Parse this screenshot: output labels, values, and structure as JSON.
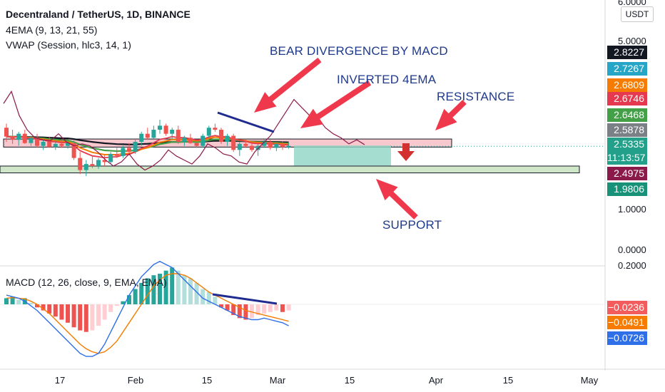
{
  "header": {
    "title": "Decentraland / TetherUS, 1D, BINANCE",
    "ema": "4EMA (9, 13, 21, 55)",
    "vwap": "VWAP (Session, hlc3, 14, 1)",
    "macd": "MACD (12, 26, close, 9, EMA, EMA)"
  },
  "currency": "USDT",
  "annotations": {
    "bear_divergence": "BEAR DIVERGENCE BY MACD",
    "inverted_ema": "INVERTED 4EMA",
    "resistance": "RESISTANCE",
    "support": "SUPPORT"
  },
  "price_axis": {
    "ticks": [
      "6.0000",
      "5.0000",
      "1.0000",
      "0.0000"
    ]
  },
  "macd_axis": {
    "ticks": [
      "0.2000"
    ]
  },
  "price_tags": [
    {
      "label": "2.8227",
      "bg": "#131722",
      "fg": "#ffffff"
    },
    {
      "label": "2.7267",
      "bg": "#26a6c7",
      "fg": "#ffffff"
    },
    {
      "label": "2.6809",
      "bg": "#f57c00",
      "fg": "#ffffff"
    },
    {
      "label": "2.6746",
      "bg": "#e53950",
      "fg": "#ffffff"
    },
    {
      "label": "2.6468",
      "bg": "#43a047",
      "fg": "#ffffff"
    },
    {
      "label": "2.5878",
      "bg": "#7b7f86",
      "fg": "#ffffff"
    },
    {
      "label": "2.5335",
      "bg": "#22a08a",
      "fg": "#ffffff"
    },
    {
      "label": "11:13:57",
      "bg": "#22a08a",
      "fg": "#ffffff"
    },
    {
      "label": "2.4975",
      "bg": "#8b1a4a",
      "fg": "#ffffff"
    },
    {
      "label": "1.9806",
      "bg": "#179278",
      "fg": "#ffffff"
    }
  ],
  "macd_tags": [
    {
      "label": "−0.0236",
      "bg": "#f25c5c",
      "fg": "#ffffff"
    },
    {
      "label": "−0.0491",
      "bg": "#f57c00",
      "fg": "#ffffff"
    },
    {
      "label": "−0.0726",
      "bg": "#2f6fe8",
      "fg": "#ffffff"
    }
  ],
  "time_axis": [
    "17",
    "Feb",
    "15",
    "Mar",
    "15",
    "Apr",
    "15",
    "May"
  ],
  "colors": {
    "up": "#26a69a",
    "down": "#ef5350",
    "ema9": "#e53950",
    "ema13": "#f57c00",
    "ema21": "#43a047",
    "ema55": "#131722",
    "vwap": "#8b1a4a",
    "macd": "#2f6fe8",
    "signal": "#f57c00",
    "resistance_zone": "#f8c8cf",
    "support_zone": "#cfe6c9",
    "projection": "#8fd6c5",
    "annotation_arrow": "#f0384c",
    "divergence_line": "#1f2b8f"
  },
  "chart_data": {
    "type": "candlestick",
    "x_range": [
      "2022-01-04",
      "2022-05-09"
    ],
    "ylim": [
      0,
      6
    ],
    "candles_ohlc": [
      [
        3.0,
        3.1,
        2.65,
        2.78
      ],
      [
        2.78,
        2.95,
        2.6,
        2.7
      ],
      [
        2.7,
        2.9,
        2.55,
        2.85
      ],
      [
        2.85,
        2.95,
        2.6,
        2.62
      ],
      [
        2.62,
        2.8,
        2.55,
        2.75
      ],
      [
        2.75,
        2.85,
        2.5,
        2.55
      ],
      [
        2.55,
        2.7,
        2.45,
        2.65
      ],
      [
        2.65,
        2.78,
        2.5,
        2.52
      ],
      [
        2.52,
        2.68,
        2.45,
        2.6
      ],
      [
        2.6,
        2.7,
        2.5,
        2.55
      ],
      [
        2.55,
        2.66,
        2.48,
        2.62
      ],
      [
        2.62,
        2.68,
        2.2,
        2.25
      ],
      [
        2.25,
        2.4,
        1.85,
        1.95
      ],
      [
        1.95,
        2.2,
        1.8,
        2.1
      ],
      [
        2.1,
        2.3,
        2.0,
        2.05
      ],
      [
        2.05,
        2.25,
        1.98,
        2.2
      ],
      [
        2.2,
        2.32,
        2.05,
        2.15
      ],
      [
        2.15,
        2.4,
        2.1,
        2.35
      ],
      [
        2.35,
        2.5,
        2.25,
        2.3
      ],
      [
        2.3,
        2.55,
        2.25,
        2.5
      ],
      [
        2.5,
        2.62,
        2.35,
        2.4
      ],
      [
        2.4,
        2.7,
        2.35,
        2.65
      ],
      [
        2.65,
        2.9,
        2.55,
        2.85
      ],
      [
        2.85,
        3.0,
        2.7,
        2.75
      ],
      [
        2.75,
        3.05,
        2.7,
        2.95
      ],
      [
        2.95,
        3.2,
        2.85,
        3.05
      ],
      [
        3.05,
        3.1,
        2.8,
        2.85
      ],
      [
        2.85,
        3.0,
        2.7,
        2.95
      ],
      [
        2.95,
        3.05,
        2.6,
        2.65
      ],
      [
        2.65,
        2.8,
        2.55,
        2.75
      ],
      [
        2.75,
        2.85,
        2.6,
        2.62
      ],
      [
        2.62,
        2.7,
        2.5,
        2.55
      ],
      [
        2.55,
        2.85,
        2.5,
        2.8
      ],
      [
        2.8,
        3.05,
        2.75,
        3.0
      ],
      [
        3.0,
        3.1,
        2.9,
        2.95
      ],
      [
        2.95,
        3.0,
        2.6,
        2.65
      ],
      [
        2.65,
        2.85,
        2.55,
        2.8
      ],
      [
        2.8,
        2.85,
        2.4,
        2.45
      ],
      [
        2.45,
        2.65,
        2.3,
        2.6
      ],
      [
        2.6,
        2.7,
        2.5,
        2.55
      ],
      [
        2.55,
        2.6,
        2.4,
        2.45
      ],
      [
        2.45,
        2.6,
        2.3,
        2.55
      ],
      [
        2.55,
        2.7,
        2.5,
        2.65
      ],
      [
        2.65,
        2.7,
        2.45,
        2.5
      ],
      [
        2.5,
        2.65,
        2.42,
        2.6
      ],
      [
        2.6,
        2.66,
        2.45,
        2.52
      ],
      [
        2.52,
        2.62,
        2.48,
        2.55
      ]
    ],
    "resistance_zone": [
      2.52,
      2.72
    ],
    "support_zone": [
      1.88,
      2.05
    ],
    "projection_box": [
      2.06,
      2.56
    ],
    "macd": {
      "histogram": [
        0.02,
        0.025,
        0.015,
        0.02,
        0.005,
        -0.01,
        -0.02,
        -0.03,
        -0.04,
        -0.05,
        -0.06,
        -0.075,
        -0.085,
        -0.09,
        -0.085,
        -0.07,
        -0.05,
        -0.025,
        -0.005,
        0.01,
        0.03,
        0.05,
        0.07,
        0.085,
        0.095,
        0.1,
        0.11,
        0.12,
        0.11,
        0.095,
        0.085,
        0.07,
        0.05,
        0.04,
        0.025,
        -0.01,
        -0.02,
        -0.035,
        -0.045,
        -0.05,
        -0.045,
        -0.035,
        -0.03,
        -0.025,
        -0.02,
        -0.025,
        -0.02
      ],
      "ylim": [
        -0.2,
        0.25
      ]
    }
  }
}
